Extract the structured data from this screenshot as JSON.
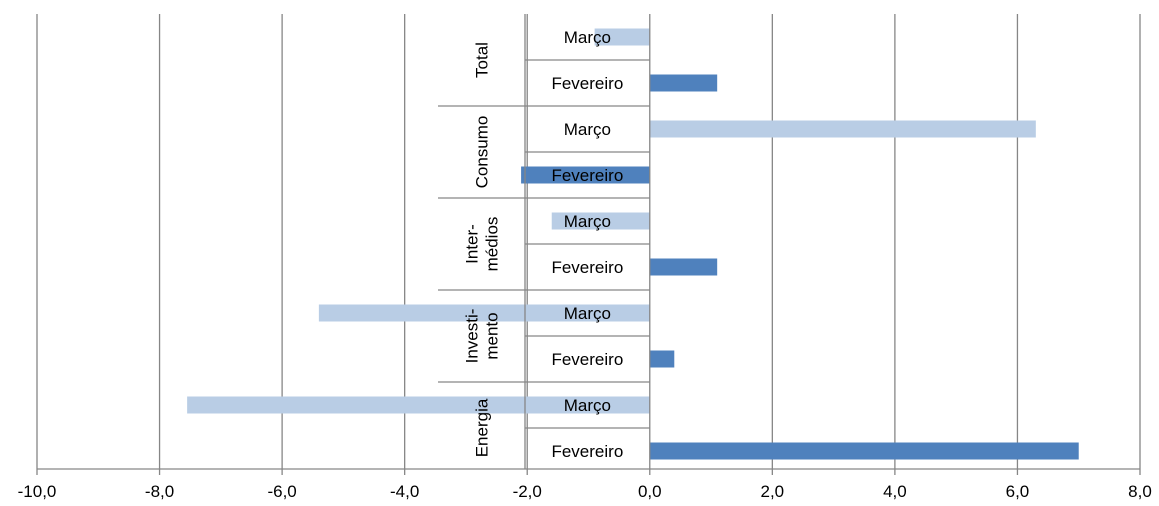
{
  "chart_data": {
    "type": "bar",
    "orientation": "horizontal",
    "title": "",
    "xlabel": "",
    "ylabel": "",
    "xlim": [
      -10,
      8
    ],
    "x_ticks": [
      -10,
      -8,
      -6,
      -4,
      -2,
      0,
      2,
      4,
      6,
      8
    ],
    "x_tick_labels": [
      "-10,0",
      "-8,0",
      "-6,0",
      "-4,0",
      "-2,0",
      "0,0",
      "2,0",
      "4,0",
      "6,0",
      "8,0"
    ],
    "grid": true,
    "legend": "none",
    "colors": {
      "Março": "#b9cde5",
      "Fevereiro": "#4f81bd"
    },
    "groups": [
      {
        "label_lines": [
          "Total"
        ],
        "bars": [
          {
            "label": "Março",
            "value": -0.9
          },
          {
            "label": "Fevereiro",
            "value": 1.1
          }
        ]
      },
      {
        "label_lines": [
          "Consumo"
        ],
        "bars": [
          {
            "label": "Março",
            "value": 6.3
          },
          {
            "label": "Fevereiro",
            "value": -2.1
          }
        ]
      },
      {
        "label_lines": [
          "Inter-",
          "médios"
        ],
        "bars": [
          {
            "label": "Março",
            "value": -1.6
          },
          {
            "label": "Fevereiro",
            "value": 1.1
          }
        ]
      },
      {
        "label_lines": [
          "Investi-",
          "mento"
        ],
        "bars": [
          {
            "label": "Março",
            "value": -5.4
          },
          {
            "label": "Fevereiro",
            "value": 0.4
          }
        ]
      },
      {
        "label_lines": [
          "Energia"
        ],
        "bars": [
          {
            "label": "Março",
            "value": -7.55
          },
          {
            "label": "Fevereiro",
            "value": 7.0
          }
        ]
      }
    ]
  }
}
